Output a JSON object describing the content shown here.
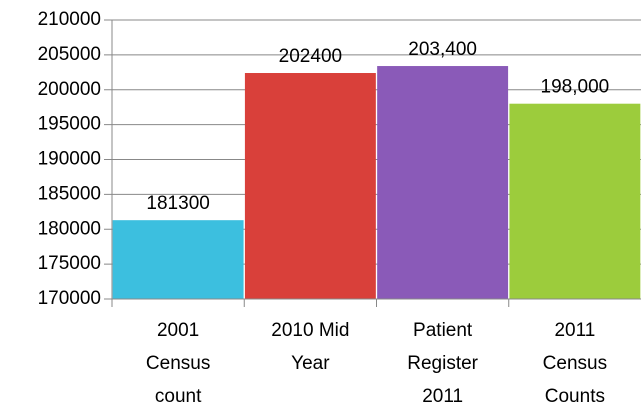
{
  "chart_data": {
    "type": "bar",
    "categories": [
      "2001\nCensus\ncount",
      "2010 Mid\nYear",
      "Patient\nRegister\n2011",
      "2011\nCensus\nCounts"
    ],
    "values": [
      181300,
      202400,
      203400,
      198000
    ],
    "value_labels": [
      "181300",
      "202400",
      "203,400",
      "198,000"
    ],
    "colors": [
      "#3cbfdf",
      "#d9403a",
      "#8a5ab8",
      "#9ccc3c"
    ],
    "ylim": [
      170000,
      210000
    ],
    "yticks": [
      170000,
      175000,
      180000,
      185000,
      190000,
      195000,
      200000,
      205000,
      210000
    ],
    "grid": true
  }
}
